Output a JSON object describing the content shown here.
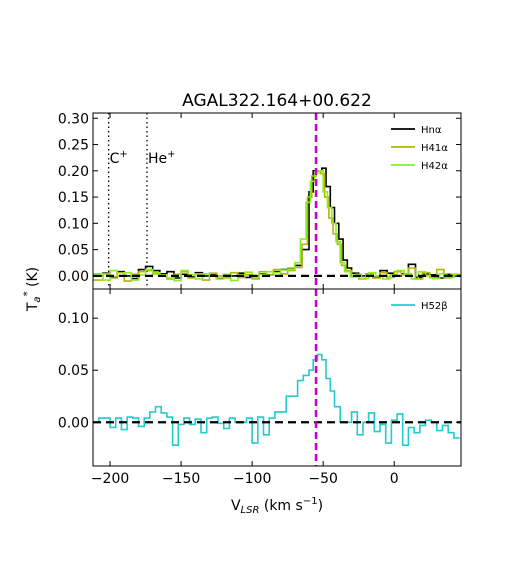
{
  "chart_data": {
    "type": "line",
    "step": true,
    "title": "AGAL322.164+00.622",
    "xlabel_main": "V",
    "xlabel_sub": "LSR",
    "xlabel_unit": " (km s",
    "xlabel_exp": "−1",
    "xlabel_close": ")",
    "ylabel_main": "T",
    "ylabel_sub": "a",
    "ylabel_sup": "*",
    "ylabel_unit": " (K)",
    "xlim": [
      -212,
      47
    ],
    "x_ticks": [
      -200,
      -150,
      -100,
      -50,
      0
    ],
    "x_tick_labels": [
      "−200",
      "−150",
      "−100",
      "−50",
      "0"
    ],
    "vline_velocity": -55,
    "vline_color": "#cc00cc",
    "panels": [
      {
        "id": "top",
        "ylim": [
          -0.025,
          0.31
        ],
        "y_ticks": [
          0.0,
          0.05,
          0.1,
          0.15,
          0.2,
          0.25,
          0.3
        ],
        "y_tick_labels": [
          "0.00",
          "0.05",
          "0.10",
          "0.15",
          "0.20",
          "0.25",
          "0.30"
        ],
        "legend_position": "upper-right",
        "reference_lines": [
          {
            "label": "C",
            "sup": "+",
            "x": -201
          },
          {
            "label": "He",
            "sup": "+",
            "x": -174
          }
        ],
        "series": [
          {
            "name": "Hnα",
            "color": "#000000",
            "x": [
              -212,
              -205,
              -200,
              -195,
              -190,
              -185,
              -180,
              -175,
              -170,
              -165,
              -160,
              -155,
              -150,
              -145,
              -140,
              -135,
              -130,
              -125,
              -120,
              -115,
              -110,
              -105,
              -100,
              -95,
              -90,
              -85,
              -80,
              -75,
              -70,
              -65,
              -60,
              -57,
              -54,
              -51,
              -48,
              -45,
              -42,
              -39,
              -36,
              -33,
              -30,
              -25,
              -20,
              -15,
              -10,
              -5,
              0,
              5,
              10,
              15,
              20,
              25,
              30,
              35,
              40,
              45
            ],
            "y": [
              0.0,
              0.005,
              -0.003,
              0.008,
              0.0,
              -0.005,
              0.012,
              0.018,
              0.01,
              0.004,
              0.008,
              -0.004,
              0.003,
              -0.002,
              0.006,
              0.0,
              0.004,
              -0.005,
              0.002,
              0.0,
              0.005,
              -0.003,
              0.0,
              0.004,
              0.002,
              0.008,
              0.012,
              0.014,
              0.02,
              0.05,
              0.16,
              0.2,
              0.2,
              0.205,
              0.17,
              0.13,
              0.1,
              0.07,
              0.03,
              0.015,
              0.005,
              0.0,
              0.004,
              -0.003,
              0.01,
              0.005,
              0.0,
              0.004,
              0.022,
              -0.003,
              0.004,
              0.002,
              -0.004,
              0.003,
              0.0,
              0.002
            ]
          },
          {
            "name": "H41α",
            "color": "#b5b500",
            "x": [
              -212,
              -205,
              -200,
              -195,
              -190,
              -185,
              -180,
              -175,
              -170,
              -165,
              -160,
              -155,
              -150,
              -145,
              -140,
              -135,
              -130,
              -125,
              -120,
              -115,
              -110,
              -105,
              -100,
              -95,
              -90,
              -85,
              -80,
              -75,
              -70,
              -65,
              -61,
              -58,
              -55,
              -52,
              -49,
              -46,
              -43,
              -40,
              -37,
              -34,
              -30,
              -25,
              -20,
              -15,
              -10,
              -5,
              0,
              5,
              10,
              15,
              20,
              25,
              30,
              35,
              40,
              45
            ],
            "y": [
              -0.008,
              0.004,
              -0.002,
              0.006,
              -0.01,
              0.003,
              0.008,
              0.01,
              0.004,
              0.0,
              -0.006,
              0.003,
              0.008,
              -0.004,
              0.004,
              -0.008,
              0.005,
              0.0,
              -0.004,
              0.006,
              -0.003,
              0.002,
              -0.006,
              0.008,
              0.002,
              0.012,
              0.004,
              0.01,
              0.016,
              0.06,
              0.15,
              0.19,
              0.2,
              0.195,
              0.15,
              0.11,
              0.08,
              0.06,
              0.02,
              0.01,
              0.0,
              -0.006,
              0.004,
              -0.004,
              0.006,
              -0.003,
              0.008,
              0.002,
              0.015,
              -0.006,
              0.006,
              -0.003,
              0.012,
              -0.004,
              0.003,
              0.0
            ]
          },
          {
            "name": "H42α",
            "color": "#88ee22",
            "x": [
              -212,
              -205,
              -200,
              -195,
              -190,
              -185,
              -180,
              -175,
              -170,
              -165,
              -160,
              -155,
              -150,
              -145,
              -140,
              -135,
              -130,
              -125,
              -120,
              -115,
              -110,
              -105,
              -100,
              -95,
              -90,
              -85,
              -80,
              -75,
              -70,
              -66,
              -62,
              -59,
              -56,
              -53,
              -50,
              -47,
              -44,
              -41,
              -38,
              -35,
              -31,
              -27,
              -23,
              -18,
              -13,
              -8,
              -3,
              2,
              7,
              12,
              17,
              22,
              27,
              32,
              37,
              42
            ],
            "y": [
              0.004,
              -0.008,
              0.01,
              0.0,
              0.006,
              -0.008,
              0.002,
              0.012,
              0.006,
              0.002,
              -0.004,
              -0.009,
              0.01,
              0.002,
              -0.006,
              0.004,
              0.0,
              -0.006,
              0.003,
              -0.009,
              0.002,
              0.007,
              -0.003,
              0.003,
              0.008,
              0.006,
              0.011,
              0.013,
              0.025,
              0.07,
              0.14,
              0.18,
              0.198,
              0.2,
              0.16,
              0.13,
              0.1,
              0.065,
              0.025,
              0.008,
              -0.002,
              0.003,
              -0.005,
              0.006,
              0.0,
              -0.006,
              0.002,
              0.01,
              0.004,
              -0.006,
              0.008,
              0.0,
              -0.005,
              0.004,
              -0.003,
              0.002
            ]
          }
        ]
      },
      {
        "id": "bottom",
        "ylim": [
          -0.042,
          0.128
        ],
        "y_ticks": [
          0.0,
          0.05,
          0.1
        ],
        "y_tick_labels": [
          "0.00",
          "0.05",
          "0.10"
        ],
        "legend_position": "upper-right",
        "reference_lines": [],
        "series": [
          {
            "name": "H52β",
            "color": "#22cccc",
            "x": [
              -212,
              -208,
              -204,
              -200,
              -196,
              -192,
              -188,
              -184,
              -180,
              -176,
              -172,
              -168,
              -164,
              -160,
              -156,
              -152,
              -148,
              -144,
              -140,
              -136,
              -132,
              -128,
              -124,
              -120,
              -116,
              -112,
              -108,
              -104,
              -100,
              -96,
              -92,
              -88,
              -84,
              -80,
              -76,
              -72,
              -68,
              -64,
              -60,
              -57,
              -54,
              -51,
              -48,
              -45,
              -42,
              -38,
              -34,
              -30,
              -26,
              -22,
              -18,
              -14,
              -10,
              -6,
              -2,
              2,
              6,
              10,
              14,
              18,
              22,
              26,
              30,
              34,
              38,
              42
            ],
            "y": [
              0.0,
              0.004,
              0.004,
              -0.005,
              0.004,
              -0.007,
              0.005,
              0.004,
              -0.004,
              0.004,
              0.01,
              0.015,
              0.009,
              0.005,
              -0.022,
              -0.002,
              0.004,
              -0.002,
              0.003,
              -0.01,
              0.004,
              0.005,
              -0.001,
              -0.006,
              0.004,
              0.0,
              0.0,
              0.004,
              -0.02,
              0.005,
              -0.012,
              0.004,
              0.01,
              0.01,
              0.025,
              0.025,
              0.04,
              0.045,
              0.05,
              0.06,
              0.065,
              0.06,
              0.042,
              0.03,
              0.015,
              0.0,
              0.0,
              0.01,
              -0.012,
              0.0,
              0.009,
              -0.009,
              -0.002,
              -0.02,
              0.002,
              0.008,
              -0.022,
              -0.005,
              -0.01,
              -0.003,
              0.002,
              0.0,
              -0.008,
              -0.003,
              -0.01,
              -0.015
            ]
          }
        ]
      }
    ]
  }
}
